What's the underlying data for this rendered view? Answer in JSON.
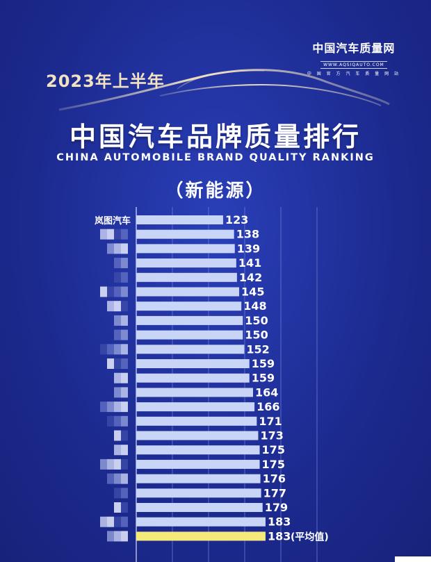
{
  "brand": {
    "name": "中国汽车质量网",
    "url": "WWW.AQSIQAUTO.COM",
    "sub": "中 国 官 方 汽 车 质 量 网 站"
  },
  "header": {
    "period": "2023年上半年",
    "title_cn": "中国汽车品牌质量排行",
    "title_en": "CHINA AUTOMOBILE BRAND QUALITY RANKING",
    "subtitle": "（新能源）"
  },
  "colors": {
    "background": "#1f2f9a",
    "bar": "#c9d5f7",
    "bar_highlight": "#f5e97a",
    "text": "#ffffff",
    "gold": "#f2e2bf"
  },
  "chart_data": {
    "type": "bar",
    "orientation": "horizontal",
    "title": "中国汽车品牌质量排行",
    "xlabel": "",
    "ylabel": "",
    "grid": true,
    "categories": [
      "岚图汽车",
      "",
      "",
      "",
      "",
      "",
      "",
      "",
      "",
      "",
      "",
      "",
      "",
      "",
      "",
      "",
      "",
      "",
      "",
      "",
      "",
      "",
      ""
    ],
    "values": [
      123,
      138,
      139,
      141,
      142,
      145,
      148,
      150,
      150,
      152,
      159,
      159,
      164,
      166,
      171,
      173,
      175,
      175,
      176,
      177,
      179,
      183,
      183
    ],
    "value_labels": [
      "123",
      "138",
      "139",
      "141",
      "142",
      "145",
      "148",
      "150",
      "150",
      "152",
      "159",
      "159",
      "164",
      "166",
      "171",
      "173",
      "175",
      "175",
      "176",
      "177",
      "179",
      "183",
      "183"
    ],
    "highlight_index": 22,
    "highlight_note": "(平均值)"
  }
}
